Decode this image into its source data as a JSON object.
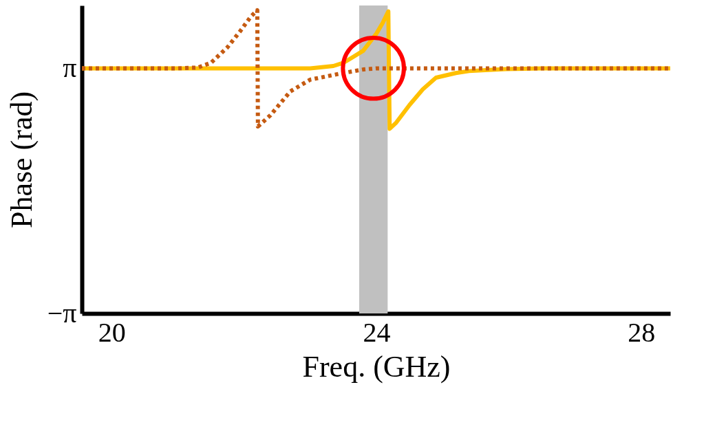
{
  "chart_data": {
    "type": "line",
    "xlabel": "Freq. (GHz)",
    "ylabel": "Phase (rad)",
    "series": [
      {
        "color": "#ffc000",
        "line_style": "solid",
        "x": [
          19.55,
          21.0,
          22.5,
          23.0,
          23.35,
          23.5,
          23.8,
          24.0,
          24.1,
          24.18,
          24.2,
          24.3,
          24.5,
          24.7,
          24.9,
          25.2,
          25.4,
          25.7,
          25.96,
          26.5,
          28.44
        ],
        "values": [
          3.14,
          3.14,
          3.14,
          3.14,
          3.2,
          3.28,
          3.59,
          4.03,
          4.32,
          4.6,
          1.59,
          1.75,
          2.2,
          2.6,
          2.9,
          3.02,
          3.07,
          3.1,
          3.12,
          3.14,
          3.14
        ]
      },
      {
        "color": "#c55a11",
        "line_style": "dotted",
        "x": [
          19.55,
          21.0,
          21.3,
          21.5,
          21.75,
          21.95,
          22.1,
          22.2,
          22.21,
          22.4,
          22.7,
          23.0,
          23.5,
          23.8,
          24.0,
          28.44
        ],
        "values": [
          3.14,
          3.14,
          3.16,
          3.28,
          3.68,
          4.11,
          4.46,
          4.63,
          1.65,
          1.94,
          2.55,
          2.85,
          3.02,
          3.11,
          3.14,
          3.14
        ]
      }
    ],
    "xlim": [
      19.55,
      28.44
    ],
    "xticks": [
      20,
      24,
      28
    ],
    "ylim": [
      -3.1416,
      4.75
    ],
    "yticks": [
      {
        "value": 3.1416,
        "label": "π"
      },
      {
        "value": -3.1416,
        "label": "−π"
      }
    ],
    "bands": [
      {
        "axis": "x",
        "from": 23.74,
        "to": 24.17,
        "color": "#c0c0c0"
      }
    ],
    "grid": false
  }
}
